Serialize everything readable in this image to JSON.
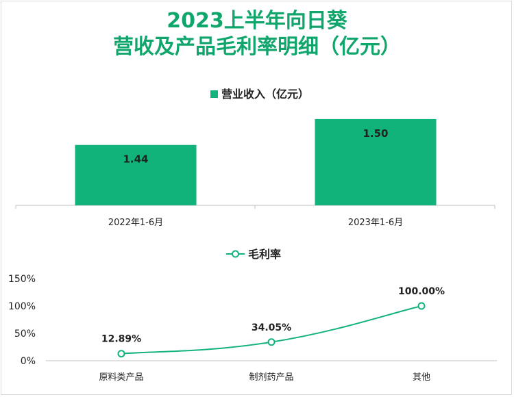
{
  "title": {
    "line1": "2023上半年向日葵",
    "line2": "营收及产品毛利率明细（亿元）"
  },
  "colors": {
    "green": "#12b37a",
    "title_green": "#10a66b",
    "axis": "#bfbfbf"
  },
  "chart_data": [
    {
      "type": "bar",
      "series": [
        {
          "name": "营业收入（亿元）",
          "values": [
            1.44,
            1.5
          ]
        }
      ],
      "categories": [
        "2022年1-6月",
        "2023年1-6月"
      ],
      "value_labels": [
        "1.44",
        "1.50"
      ],
      "ylim": [
        1.3,
        1.53
      ],
      "grid": false,
      "legend": "top-center"
    },
    {
      "type": "line",
      "series": [
        {
          "name": "毛利率",
          "values": [
            12.89,
            34.05,
            100.0
          ]
        }
      ],
      "categories": [
        "原料类产品",
        "制剂药产品",
        "其他"
      ],
      "value_labels": [
        "12.89%",
        "34.05%",
        "100.00%"
      ],
      "y_ticks": [
        "0%",
        "50%",
        "100%",
        "150%"
      ],
      "y_tick_values": [
        0,
        50,
        100,
        150
      ],
      "ylim": [
        0,
        150
      ],
      "grid": false,
      "legend": "top-center"
    }
  ]
}
